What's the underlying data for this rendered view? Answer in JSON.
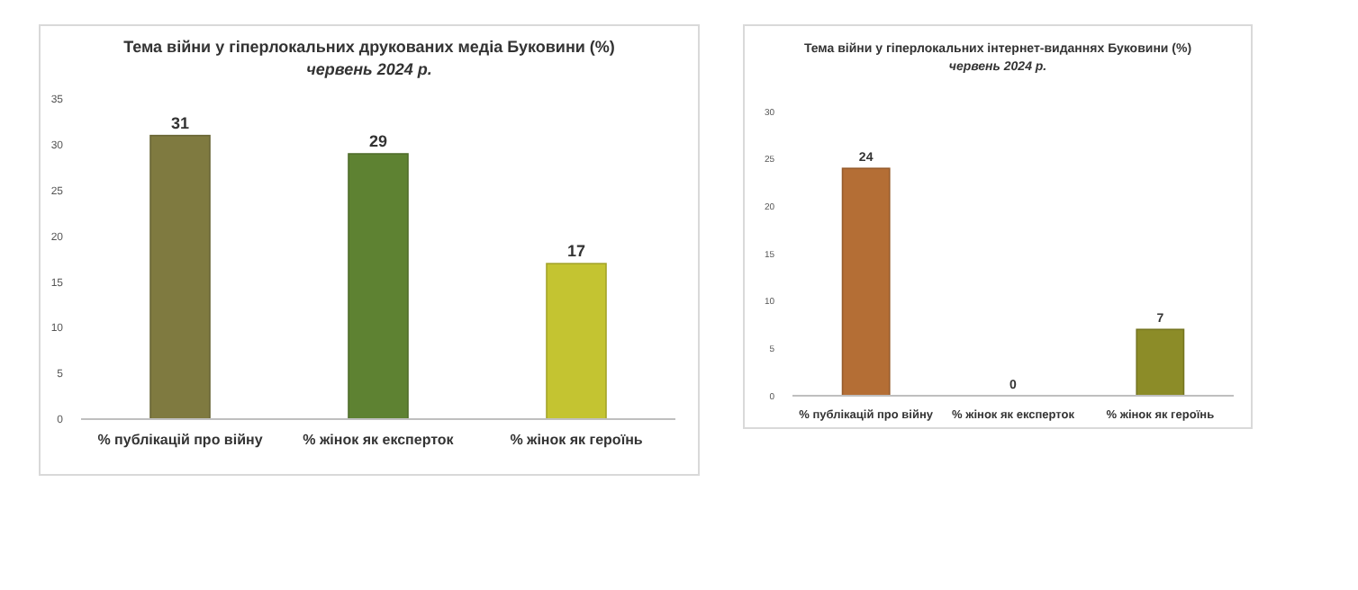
{
  "chart_data": [
    {
      "type": "bar",
      "title": "Тема війни у гіперлокальних друкованих медіа Буковини (%)",
      "subtitle": "червень 2024 р.",
      "categories": [
        "% публікацій про війну",
        "% жінок як експерток",
        "% жінок як героїнь"
      ],
      "values": [
        31,
        29,
        17
      ],
      "colors": [
        "#7f7a40",
        "#5e8232",
        "#c4c431"
      ],
      "ylim": [
        0,
        35
      ],
      "yticks": [
        0,
        5,
        10,
        15,
        20,
        25,
        30,
        35
      ],
      "data_labels": true
    },
    {
      "type": "bar",
      "title": "Тема війни у гіперлокальних інтернет-виданнях Буковини (%)",
      "subtitle": "червень 2024 р.",
      "categories": [
        "% публікацій про війну",
        "% жінок як експерток",
        "% жінок як героїнь"
      ],
      "values": [
        24,
        0,
        7
      ],
      "colors": [
        "#b46e35",
        "#5e8232",
        "#8c8c28"
      ],
      "ylim": [
        0,
        30
      ],
      "yticks": [
        0,
        5,
        10,
        15,
        20,
        25,
        30
      ],
      "data_labels": true
    }
  ]
}
